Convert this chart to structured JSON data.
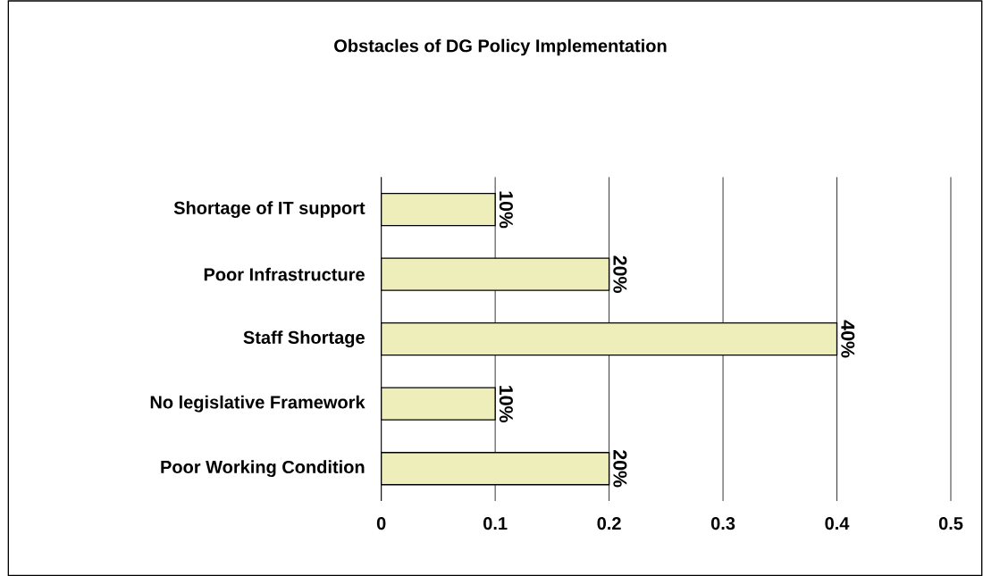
{
  "chart_data": {
    "type": "bar",
    "orientation": "horizontal",
    "title": "Obstacles of DG Policy Implementation",
    "categories": [
      "Shortage of IT support",
      "Poor Infrastructure",
      "Staff Shortage",
      "No legislative Framework",
      "Poor Working Condition"
    ],
    "values": [
      0.1,
      0.2,
      0.4,
      0.1,
      0.2
    ],
    "value_labels": [
      "10%",
      "20%",
      "40%",
      "10%",
      "20%"
    ],
    "color": "#eeeebb",
    "xlim": [
      0,
      0.5
    ],
    "xticks": [
      0,
      0.1,
      0.2,
      0.3,
      0.4,
      0.5
    ],
    "grid": "x"
  }
}
